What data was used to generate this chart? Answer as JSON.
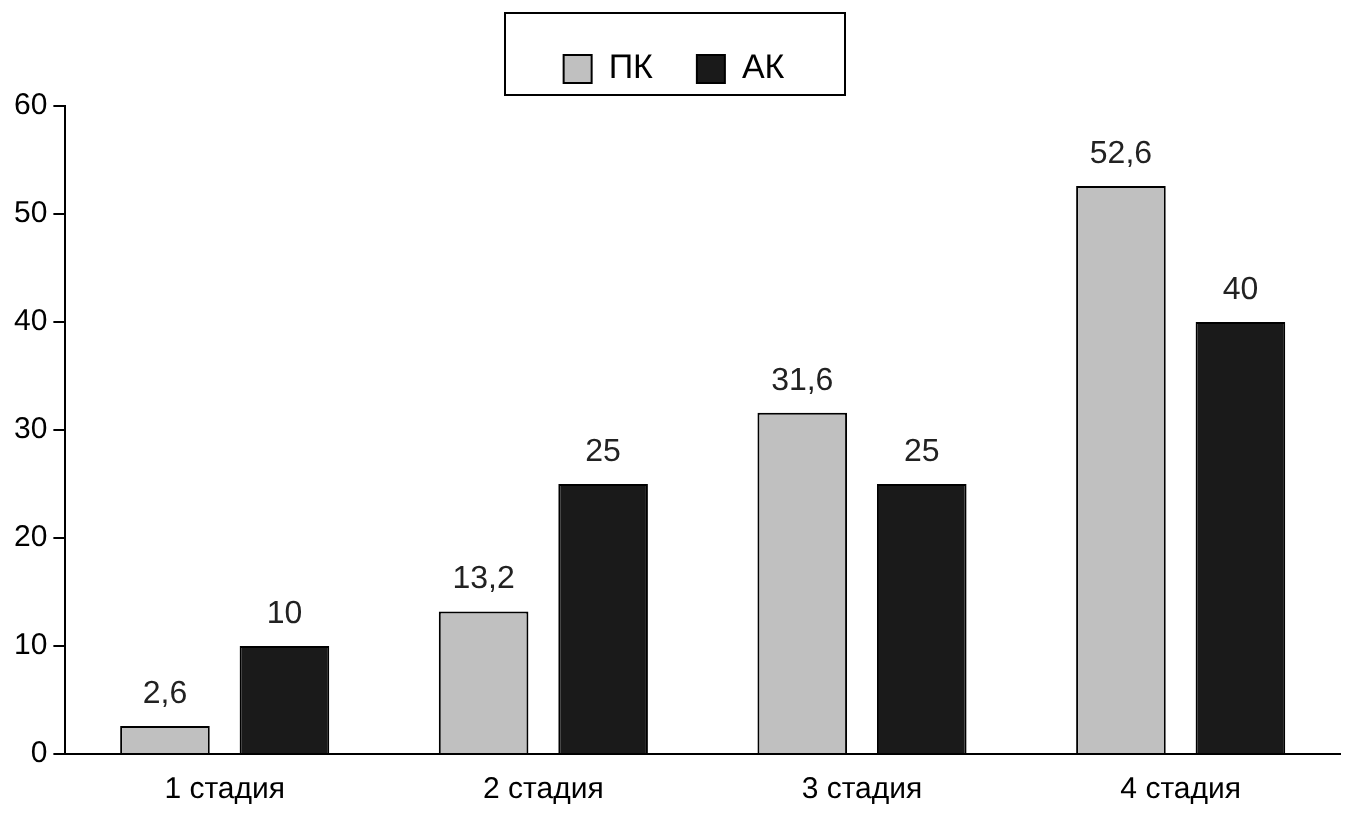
{
  "chart_data": {
    "type": "bar",
    "categories": [
      "1 стадия",
      "2 стадия",
      "3 стадия",
      "4 стадия"
    ],
    "series": [
      {
        "name": "ПК",
        "color": "#c0c0c0",
        "values": [
          2.6,
          13.2,
          31.6,
          52.6
        ],
        "value_labels": [
          "2,6",
          "13,2",
          "31,6",
          "52,6"
        ]
      },
      {
        "name": "АК",
        "color": "#1a1a1a",
        "values": [
          10,
          25,
          25,
          40
        ],
        "value_labels": [
          "10",
          "25",
          "25",
          "40"
        ]
      }
    ],
    "ylim": [
      0,
      60
    ],
    "yticks": [
      0,
      10,
      20,
      30,
      40,
      50,
      60
    ],
    "grid": false,
    "legend": "top"
  }
}
